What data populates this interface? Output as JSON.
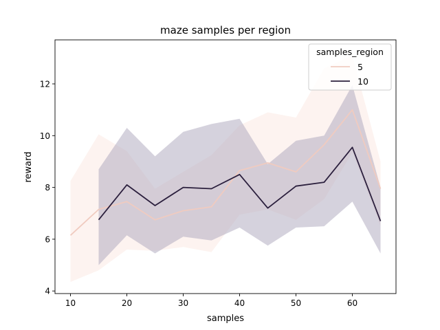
{
  "chart_data": {
    "type": "line",
    "title": "maze samples per region",
    "xlabel": "samples",
    "ylabel": "reward",
    "xlim": [
      7.25,
      67.75
    ],
    "ylim": [
      3.9,
      13.7
    ],
    "xticks": [
      10,
      20,
      30,
      40,
      50,
      60
    ],
    "yticks": [
      4,
      6,
      8,
      10,
      12
    ],
    "grid": false,
    "legend": {
      "title": "samples_region",
      "placement": "top-right"
    },
    "series": [
      {
        "name": "5",
        "color": "#f0cbc0",
        "band_color": "#fbeae4",
        "x": [
          10,
          15,
          20,
          25,
          30,
          35,
          40,
          45,
          50,
          55,
          60,
          65
        ],
        "y": [
          6.15,
          7.15,
          7.45,
          6.75,
          7.1,
          7.25,
          8.65,
          8.95,
          8.6,
          9.65,
          11.0,
          7.95
        ],
        "ci_low": [
          4.35,
          4.8,
          5.6,
          5.55,
          5.7,
          5.5,
          6.95,
          7.15,
          6.75,
          7.55,
          9.35,
          6.5
        ],
        "ci_high": [
          8.25,
          10.05,
          9.4,
          7.95,
          8.6,
          9.25,
          10.4,
          10.9,
          10.7,
          12.6,
          13.1,
          9.0
        ]
      },
      {
        "name": "10",
        "color": "#2b1f3d",
        "band_color": "#aba6bc",
        "x": [
          15,
          20,
          25,
          30,
          35,
          40,
          45,
          50,
          55,
          60,
          65
        ],
        "y": [
          6.75,
          8.1,
          7.3,
          8.0,
          7.95,
          8.5,
          7.2,
          8.05,
          8.2,
          9.55,
          6.7
        ],
        "ci_low": [
          5.0,
          6.15,
          5.45,
          6.1,
          5.95,
          6.45,
          5.75,
          6.45,
          6.5,
          7.45,
          5.45
        ],
        "ci_high": [
          8.7,
          10.3,
          9.2,
          10.15,
          10.45,
          10.65,
          8.9,
          9.8,
          10.0,
          11.95,
          8.0
        ]
      }
    ]
  }
}
